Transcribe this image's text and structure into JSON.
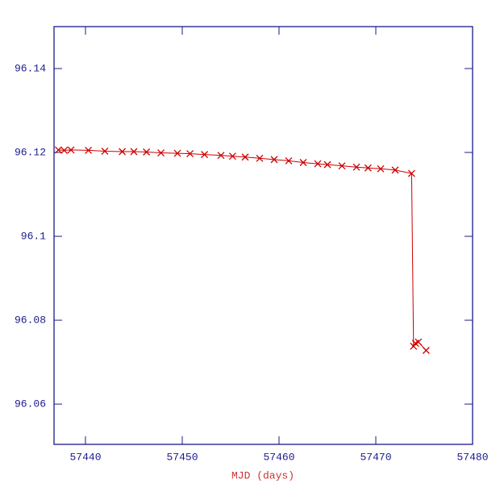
{
  "chart_data": {
    "type": "line",
    "x_label": "MJD (days)",
    "x": [
      57437.2,
      57437.8,
      57438.5,
      57440.3,
      57442.0,
      57443.8,
      57445.0,
      57446.3,
      57447.8,
      57449.5,
      57450.8,
      57452.3,
      57454.0,
      57455.2,
      57456.5,
      57458.0,
      57459.5,
      57461.0,
      57462.5,
      57464.0,
      57465.0,
      57466.5,
      57468.0,
      57469.2,
      57470.5,
      57472.0,
      57473.7,
      57473.9,
      57474.1,
      57474.4,
      57475.2
    ],
    "series": [
      {
        "color": "#cc0000",
        "marker": "x",
        "values": [
          96.1206,
          96.1205,
          96.1206,
          96.1205,
          96.1203,
          96.1202,
          96.1202,
          96.1201,
          96.1199,
          96.1198,
          96.1197,
          96.1195,
          96.1193,
          96.1191,
          96.1189,
          96.1186,
          96.1183,
          96.118,
          96.1176,
          96.1173,
          96.1171,
          96.1168,
          96.1165,
          96.1163,
          96.1161,
          96.1158,
          96.115,
          96.0738,
          96.0745,
          96.0748,
          96.0728
        ]
      }
    ],
    "xlim": [
      57436.75,
      57480
    ],
    "xticks": [
      57440,
      57450,
      57460,
      57470,
      57480
    ],
    "ylim": [
      96.0504,
      96.15
    ],
    "yticks": [
      96.06,
      96.08,
      96.1,
      96.12,
      96.14
    ],
    "axis_color": "#1a1a8c",
    "label_color": "#cc3333"
  }
}
